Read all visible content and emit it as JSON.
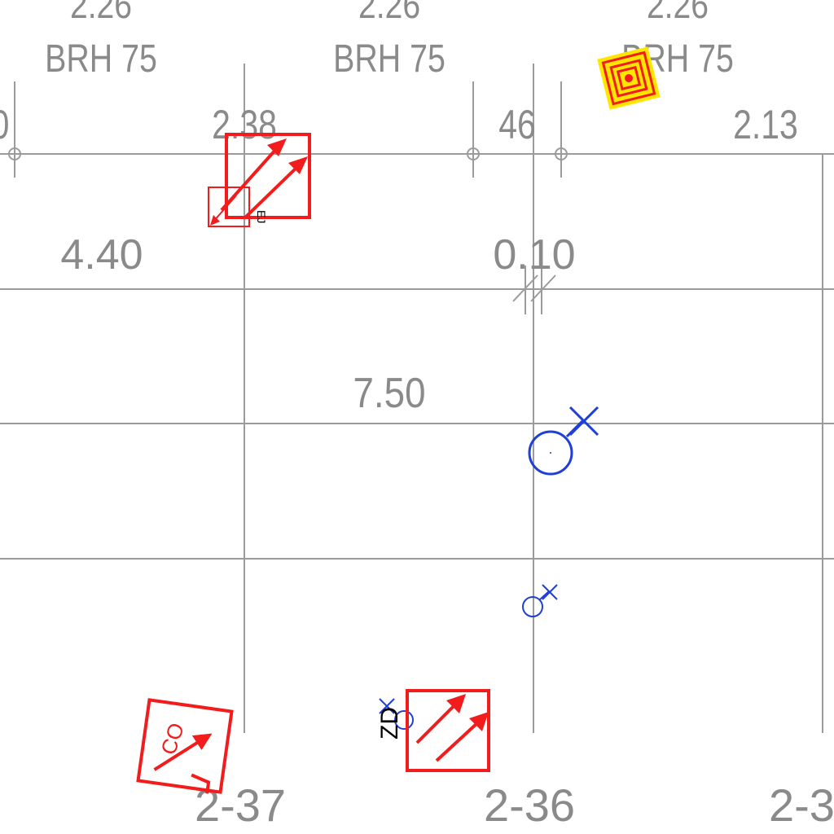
{
  "drawing": {
    "colors": {
      "background": "#ffffff",
      "dimension_text": "#8a8a8a",
      "grid": "#9b9b9b",
      "fire_symbol": "#f21c1c",
      "sprinkler": "#1f3fd6",
      "alarm_highlight": "#ffe600",
      "tag_text": "#000000"
    },
    "top_labels": {
      "level_left": "2.26",
      "level_mid": "2.26",
      "level_right": "2.26",
      "brh_left": "BRH 75",
      "brh_mid": "BRH 75",
      "brh_right": "BRH 75"
    },
    "dimensions": {
      "left_partial": "0",
      "d_238": "2.38",
      "d_46": "46",
      "d_213": "2.13",
      "d_440": "4.40",
      "d_010": "0.10",
      "d_750": "7.50"
    },
    "grid_labels": {
      "axis_1": "2-37",
      "axis_2": "2-36",
      "axis_3": "2-3"
    },
    "symbols": {
      "exit_top_tag": "EJ",
      "exit_bottom_left_text": "CO",
      "exit_bottom_tag": "ZD"
    },
    "icons": [
      "exit-sign-icon",
      "fire-alarm-icon",
      "sprinkler-icon",
      "smoke-detector-icon"
    ]
  }
}
